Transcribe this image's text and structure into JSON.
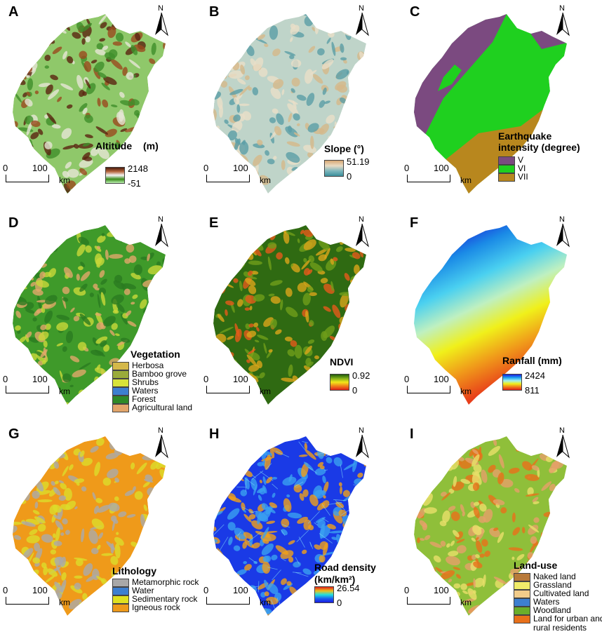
{
  "panels": [
    {
      "id": "A",
      "label": "A",
      "north": "N",
      "scale": {
        "zero": "0",
        "hundred": "100",
        "unit": "km"
      },
      "legend": {
        "title": "Altitude",
        "unit": "(m)",
        "max": "2148",
        "min": "-51",
        "gradient": [
          "#4a1a0c",
          "#b5643a",
          "#f5f5f5",
          "#3a8a1a",
          "#bef2b4"
        ]
      }
    },
    {
      "id": "B",
      "label": "B",
      "north": "N",
      "scale": {
        "zero": "0",
        "hundred": "100",
        "unit": "km"
      },
      "legend": {
        "title": "Slope (°)",
        "max": "51.19",
        "min": "0",
        "gradient": [
          "#d7a874",
          "#eadbc2",
          "#7eb7bd",
          "#3b8f9c"
        ]
      }
    },
    {
      "id": "C",
      "label": "C",
      "north": "N",
      "scale": {
        "zero": "0",
        "hundred": "100",
        "unit": "km"
      },
      "legend": {
        "title": "Earthquake",
        "title2": "intensity (degree)",
        "items": [
          {
            "label": "V",
            "color": "#7b4a80"
          },
          {
            "label": "VI",
            "color": "#1fd01f"
          },
          {
            "label": "VII",
            "color": "#b8871e"
          }
        ]
      }
    },
    {
      "id": "D",
      "label": "D",
      "north": "N",
      "scale": {
        "zero": "0",
        "hundred": "100",
        "unit": "km"
      },
      "legend": {
        "title": "Vegetation",
        "items": [
          {
            "label": "Herbosa",
            "color": "#d4b84a"
          },
          {
            "label": "Bamboo grove",
            "color": "#9aab3a"
          },
          {
            "label": "Shrubs",
            "color": "#d8e33a"
          },
          {
            "label": "Waters",
            "color": "#3d7fd0"
          },
          {
            "label": "Forest",
            "color": "#2f8a28"
          },
          {
            "label": "Agricultural land",
            "color": "#e2a56a"
          }
        ]
      }
    },
    {
      "id": "E",
      "label": "E",
      "north": "N",
      "scale": {
        "zero": "0",
        "hundred": "100",
        "unit": "km"
      },
      "legend": {
        "title": "NDVI",
        "max": "0.92",
        "min": "0",
        "gradient": [
          "#1f5a0a",
          "#7fae1a",
          "#f2e81a",
          "#f0801a",
          "#e0201a"
        ]
      }
    },
    {
      "id": "F",
      "label": "F",
      "north": "N",
      "scale": {
        "zero": "0",
        "hundred": "100",
        "unit": "km"
      },
      "legend": {
        "title": "Ranfall (mm)",
        "max": "2424",
        "min": "811",
        "gradient": [
          "#1a1ae0",
          "#1aa0f0",
          "#a0f0f0",
          "#f0f01a",
          "#f0801a",
          "#e0201a"
        ]
      }
    },
    {
      "id": "G",
      "label": "G",
      "north": "N",
      "scale": {
        "zero": "0",
        "hundred": "100",
        "unit": "km"
      },
      "legend": {
        "title": "Lithology",
        "items": [
          {
            "label": "Metamorphic rock",
            "color": "#a8a8a8"
          },
          {
            "label": "Water",
            "color": "#3d7fd0"
          },
          {
            "label": "Sedimentary rock",
            "color": "#e0e020"
          },
          {
            "label": "Igneous rock",
            "color": "#ee9a1a"
          }
        ]
      }
    },
    {
      "id": "H",
      "label": "H",
      "north": "N",
      "scale": {
        "zero": "0",
        "hundred": "100",
        "unit": "km"
      },
      "legend": {
        "title": "Road density",
        "title2": "(km/km²)",
        "max": "26.54",
        "min": "0",
        "gradient": [
          "#e0201a",
          "#f0c01a",
          "#20e0e0",
          "#1a60f0",
          "#1a1ae0"
        ]
      }
    },
    {
      "id": "I",
      "label": "I",
      "north": "N",
      "scale": {
        "zero": "0",
        "hundred": "100",
        "unit": "km"
      },
      "legend": {
        "title": "Land-use",
        "items": [
          {
            "label": "Naked land",
            "color": "#b87a3a"
          },
          {
            "label": "Grassland",
            "color": "#f0ec6a"
          },
          {
            "label": "Cultivated land",
            "color": "#f2cc8a"
          },
          {
            "label": "Waters",
            "color": "#3d7fd0"
          },
          {
            "label": "Woodland",
            "color": "#6aae2a"
          },
          {
            "label": "Land for urban and",
            "color": "#e8701a"
          }
        ],
        "extra": "rural residents"
      }
    }
  ],
  "map_colors": {
    "A": {
      "base": "#8fc86a",
      "patches": [
        "#9a4a1e",
        "#5a2410",
        "#e6e6d6",
        "#3f8f2a"
      ]
    },
    "B": {
      "base": "#bfd4c9",
      "patches": [
        "#5b9ea6",
        "#d6b88a",
        "#eadfc8"
      ]
    },
    "D": {
      "base": "#3f9a2a",
      "patches": [
        "#c9d83a",
        "#e1a86a",
        "#2a7a20"
      ]
    },
    "E": {
      "base": "#2f6a12",
      "patches": [
        "#6f9e1a",
        "#d9a51a",
        "#e65a1a"
      ]
    },
    "G": {
      "base": "#ef9a1a",
      "patches": [
        "#dcdc2a",
        "#aaaaaa"
      ]
    },
    "H": {
      "base": "#1a3ae6",
      "patches": [
        "#3aa0f0",
        "#f0a01a"
      ]
    },
    "I": {
      "base": "#8fbf3a",
      "patches": [
        "#e9e06a",
        "#e6a06a",
        "#e8701a"
      ]
    }
  }
}
